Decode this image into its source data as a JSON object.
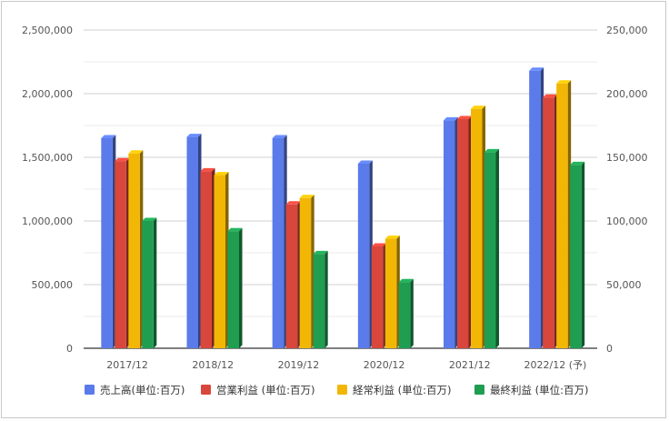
{
  "chart_data": {
    "type": "bar",
    "categories": [
      "2017/12",
      "2018/12",
      "2019/12",
      "2020/12",
      "2021/12",
      "2022/12 (予)"
    ],
    "series": [
      {
        "name": "売上高(単位:百万)",
        "axis": "left",
        "color": "#5b7bea",
        "values": [
          1650000,
          1660000,
          1650000,
          1450000,
          1790000,
          2180000
        ]
      },
      {
        "name": "営業利益 (単位:百万)",
        "axis": "right",
        "color": "#d9463b",
        "values": [
          147000,
          139000,
          113000,
          80000,
          180000,
          197000
        ]
      },
      {
        "name": "経常利益 (単位:百万)",
        "axis": "right",
        "color": "#f2b705",
        "values": [
          153000,
          136000,
          118000,
          86000,
          188000,
          208000
        ]
      },
      {
        "name": "最終利益 (単位:百万)",
        "axis": "right",
        "color": "#1f9e52",
        "values": [
          100000,
          92000,
          74000,
          52000,
          154000,
          144000
        ]
      }
    ],
    "left_axis": {
      "ylim": [
        0,
        2500000
      ],
      "ticks": [
        "0",
        "500,000",
        "1,000,000",
        "1,500,000",
        "2,000,000",
        "2,500,000"
      ]
    },
    "right_axis": {
      "ylim": [
        0,
        250000
      ],
      "ticks": [
        "0",
        "50,000",
        "100,000",
        "150,000",
        "200,000",
        "250,000"
      ]
    },
    "grid": true,
    "legend_position": "bottom"
  }
}
